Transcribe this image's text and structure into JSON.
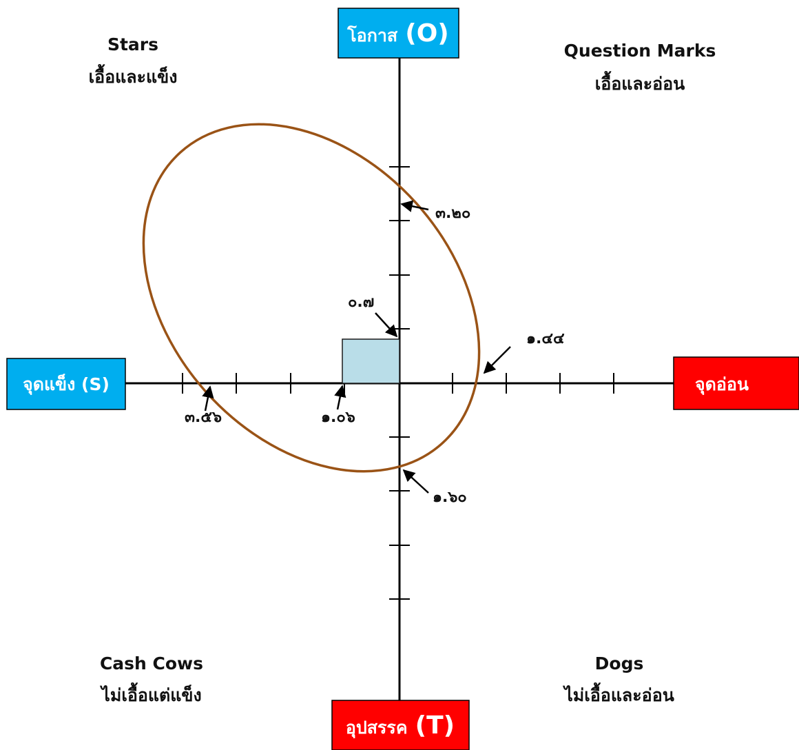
{
  "colors": {
    "blue_box": "#00aeef",
    "red_box": "#ff0000",
    "ellipse_stroke": "#9a5316",
    "rect_fill": "#b9dde8",
    "rect_stroke": "#1a1a1a"
  },
  "boxes": {
    "top": {
      "text": "โอกาส",
      "paren": "(O)"
    },
    "bottom": {
      "text": "อุปสรรค",
      "paren": "(T)"
    },
    "left": {
      "text": "จุดแข็ง (S)"
    },
    "right": {
      "text": "จุดอ่อน"
    }
  },
  "quadrants": {
    "top_left": {
      "line1": "Stars",
      "line2": "เอื้อและแข็ง"
    },
    "top_right": {
      "line1": "Question Marks",
      "line2": "เอื้อและอ่อน"
    },
    "bottom_left": {
      "line1": "Cash Cows",
      "line2": "ไม่เอื้อแต่แข็ง"
    },
    "bottom_right": {
      "line1": "Dogs",
      "line2": "ไม่เอื้อและอ่อน"
    }
  },
  "values": {
    "opportunity": "๓.๒๐",
    "threat": "๑.๖๐",
    "strength": "๓.๕๖",
    "weakness": "๑.๔๔",
    "net_strength": "๑.๐๖",
    "net_opportunity": "๐.๗"
  }
}
